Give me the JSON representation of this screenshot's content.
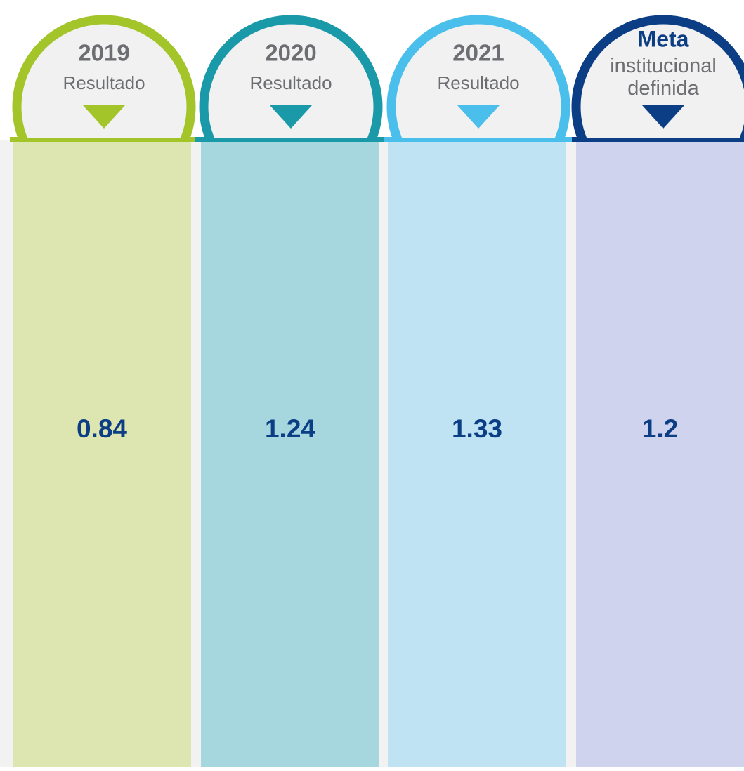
{
  "columns": [
    {
      "title": "2019",
      "subtitle": "Resultado",
      "value": "0.84"
    },
    {
      "title": "2020",
      "subtitle": "Resultado",
      "value": "1.24"
    },
    {
      "title": "2021",
      "subtitle": "Resultado",
      "value": "1.33"
    },
    {
      "title": "Meta",
      "subtitle": "institucional definida",
      "value": "1.2"
    }
  ]
}
